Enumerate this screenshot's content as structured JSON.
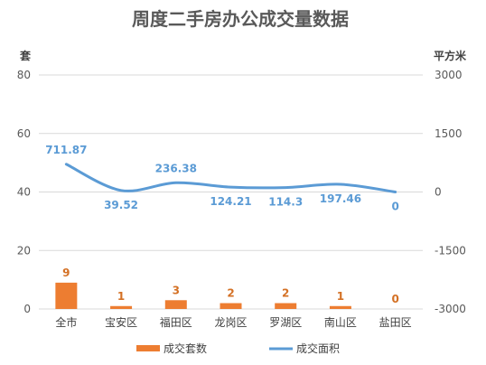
{
  "chart_data": {
    "type": "bar",
    "title": "周度二手房办公成交量数据",
    "categories": [
      "全市",
      "宝安区",
      "福田区",
      "龙岗区",
      "罗湖区",
      "南山区",
      "盐田区"
    ],
    "series": [
      {
        "name": "成交套数",
        "type": "bar",
        "axis": "left",
        "color": "#ed7d31",
        "label_color": "#d47125",
        "values": [
          9,
          1,
          3,
          2,
          2,
          1,
          0
        ],
        "labels": [
          "9",
          "1",
          "3",
          "2",
          "2",
          "1",
          "0"
        ]
      },
      {
        "name": "成交面积",
        "type": "line",
        "axis": "right",
        "color": "#5b9bd5",
        "smooth": true,
        "values": [
          711.87,
          39.52,
          236.38,
          124.21,
          114.3,
          197.46,
          0
        ],
        "labels": [
          "711.87",
          "39.52",
          "236.38",
          "124.21",
          "114.3",
          "197.46",
          "0"
        ]
      }
    ],
    "y_left": {
      "label": "套",
      "ylim": [
        0,
        80
      ],
      "ticks": [
        "0",
        "20",
        "40",
        "60",
        "80"
      ]
    },
    "y_right": {
      "label": "平方米",
      "ylim": [
        -3000,
        3000
      ],
      "ticks": [
        "-3000",
        "-1500",
        "0",
        "1500",
        "3000"
      ]
    },
    "grid": true,
    "legend_position": "bottom"
  }
}
